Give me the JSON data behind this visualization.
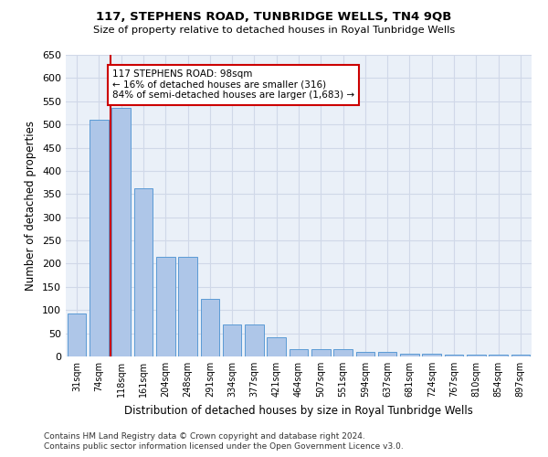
{
  "title": "117, STEPHENS ROAD, TUNBRIDGE WELLS, TN4 9QB",
  "subtitle": "Size of property relative to detached houses in Royal Tunbridge Wells",
  "xlabel": "Distribution of detached houses by size in Royal Tunbridge Wells",
  "ylabel": "Number of detached properties",
  "footer_line1": "Contains HM Land Registry data © Crown copyright and database right 2024.",
  "footer_line2": "Contains public sector information licensed under the Open Government Licence v3.0.",
  "bar_labels": [
    "31sqm",
    "74sqm",
    "118sqm",
    "161sqm",
    "204sqm",
    "248sqm",
    "291sqm",
    "334sqm",
    "377sqm",
    "421sqm",
    "464sqm",
    "507sqm",
    "551sqm",
    "594sqm",
    "637sqm",
    "681sqm",
    "724sqm",
    "767sqm",
    "810sqm",
    "854sqm",
    "897sqm"
  ],
  "bar_values": [
    93,
    510,
    535,
    362,
    215,
    215,
    125,
    68,
    68,
    42,
    15,
    16,
    16,
    10,
    10,
    5,
    5,
    4,
    4,
    4,
    4
  ],
  "bar_color": "#aec6e8",
  "bar_edge_color": "#5b9bd5",
  "vline_position": 1.5,
  "annotation_text": "117 STEPHENS ROAD: 98sqm\n← 16% of detached houses are smaller (316)\n84% of semi-detached houses are larger (1,683) →",
  "annotation_box_color": "#ffffff",
  "annotation_box_edge": "#cc0000",
  "vline_color": "#cc0000",
  "grid_color": "#d0d8e8",
  "bg_color": "#eaf0f8",
  "ylim": [
    0,
    650
  ],
  "yticks": [
    0,
    50,
    100,
    150,
    200,
    250,
    300,
    350,
    400,
    450,
    500,
    550,
    600,
    650
  ]
}
